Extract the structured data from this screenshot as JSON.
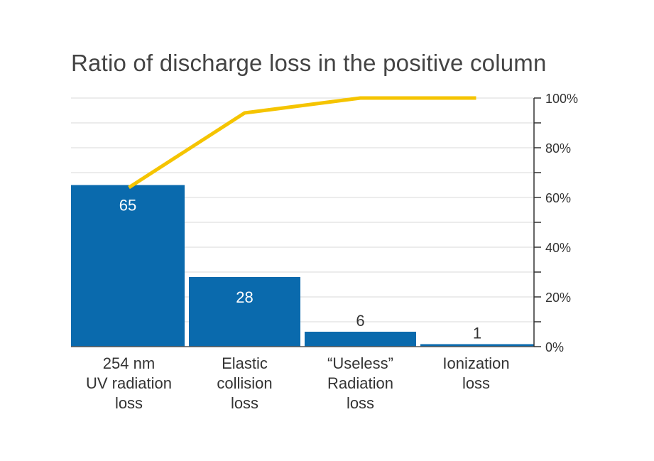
{
  "chart_data": {
    "type": "bar",
    "title": "Ratio of discharge loss in the positive column",
    "categories": [
      "254 nm\nUV radiation\nloss",
      "Elastic\ncollision\nloss",
      "“Useless”\nRadiation\nloss",
      "Ionization\nloss"
    ],
    "series": [
      {
        "values": [
          65,
          28,
          6,
          1
        ],
        "color": "#0a6aad",
        "data_labels": [
          "65",
          "28",
          "6",
          "1"
        ]
      },
      {
        "type": "line",
        "values": [
          64,
          94,
          100,
          100
        ],
        "color": "#f5c400"
      }
    ],
    "y_right_ticks": [
      "0%",
      "20%",
      "40%",
      "60%",
      "80%",
      "100%"
    ],
    "ylim": [
      0,
      100
    ],
    "grid": true
  }
}
